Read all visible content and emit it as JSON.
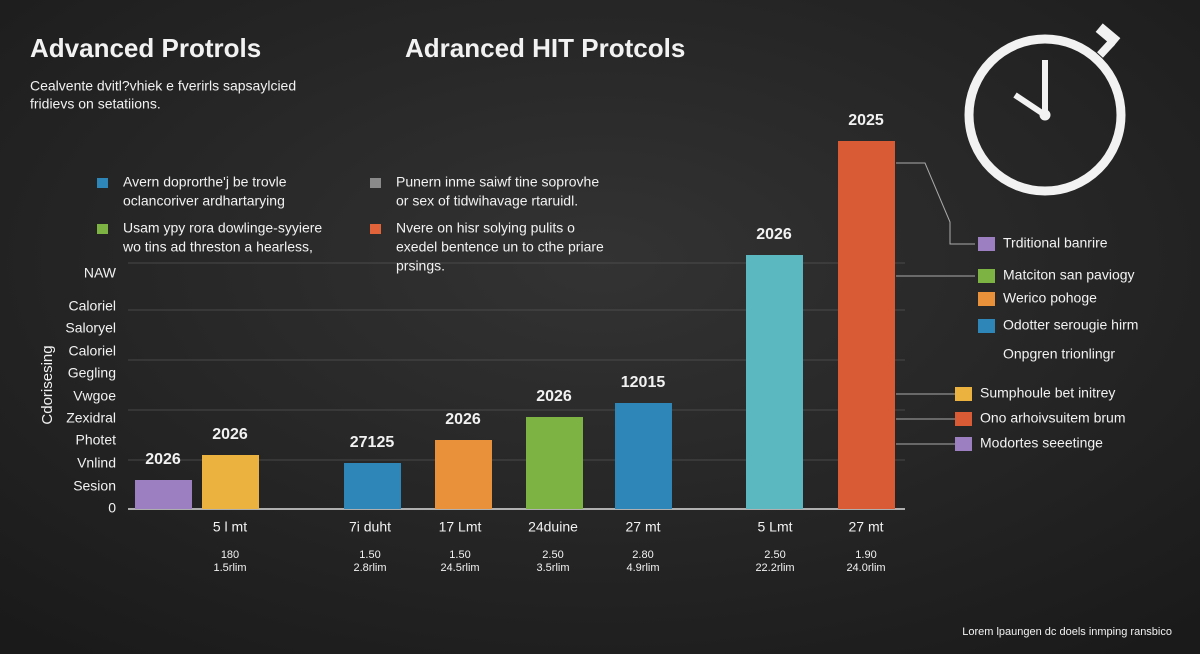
{
  "header": {
    "title": "Advanced  Protrols",
    "title2": "Adranced HIT Protcols",
    "subtitle": [
      "Cealvente dvitl?vhiek e fverirls sapsaylcied",
      "fridievs on setatiions."
    ]
  },
  "notes": [
    {
      "lines": [
        "Avern doprorthe'j be trovle",
        "oclancoriver ardhartarying"
      ]
    },
    {
      "lines": [
        "Punern inme saiwf tine soprovhe",
        "or sex of tidwihavage rtaruidl."
      ]
    },
    {
      "lines": [
        "Usam ypy rora dowlinge-syyiere",
        "wo tins ad threston a hearless,"
      ]
    },
    {
      "lines": [
        "Nvere on hisr solying pulits o",
        "exedel bentence un to cthe priare",
        "prsings."
      ]
    }
  ],
  "axis": {
    "title": "Cdorisesing",
    "labels": [
      "NAW",
      "Caloriel",
      "Saloryel",
      "Caloriel",
      "Gegling",
      "Vwgoe",
      "Zexidral",
      "Photet",
      "Vnlind",
      "Sesion",
      "0"
    ]
  },
  "bars": [
    {
      "label": "2026"
    },
    {
      "label": "2026"
    },
    {
      "label": "27125"
    },
    {
      "label": "2026"
    },
    {
      "label": "2026"
    },
    {
      "label": "12015"
    },
    {
      "label": "2026"
    },
    {
      "label": "2025"
    }
  ],
  "columns": [
    {
      "label": "5 l mt",
      "sub": [
        "180",
        "1.5rlim"
      ]
    },
    {
      "label": "7i duht",
      "sub": [
        "1.50",
        "2.8rlim"
      ]
    },
    {
      "label": "17 Lmt",
      "sub": [
        "1.50",
        "24.5rlim"
      ]
    },
    {
      "label": "24duine",
      "sub": [
        "2.50",
        "3.5rlim"
      ]
    },
    {
      "label": "27 mt",
      "sub": [
        "2.80",
        "4.9rlim"
      ]
    },
    {
      "label": "5 Lmt",
      "sub": [
        "2.50",
        "22.2rlim"
      ]
    },
    {
      "label": "27 mt",
      "sub": [
        "1.90",
        "24.0rlim"
      ]
    }
  ],
  "legend": [
    "Trditional banrire",
    "Matciton san paviogy",
    "Werico pohoge",
    "Odotter serougie hirm",
    "Onpgren trionlingr",
    "Sumphoule bet initrey",
    "Ono arhoivsuitem brum",
    "Modortes seeetinge"
  ],
  "footer": "Lorem lpaungen dc doels inmping ransbico"
}
